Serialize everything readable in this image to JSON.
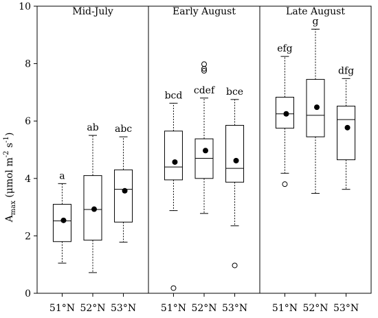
{
  "chart_data": {
    "type": "box",
    "y_axis": {
      "label_main": "A",
      "label_sub": "max",
      "label_rest": " (μmol m",
      "label_exp1": "-2",
      "label_mid": " s",
      "label_exp2": "-1",
      "label_end": ")",
      "ylim": [
        0,
        10
      ],
      "ticks": [
        0,
        2,
        4,
        6,
        8,
        10
      ],
      "tick_labels": [
        "0",
        "2",
        "4",
        "6",
        "8",
        "10"
      ]
    },
    "panels": [
      {
        "title": "Mid-July",
        "groups": [
          {
            "category": "51°N",
            "letters": "a",
            "whisker_low": 1.05,
            "q1": 1.8,
            "median": 2.52,
            "q3": 3.1,
            "whisker_high": 3.82,
            "mean": 2.54,
            "outliers": []
          },
          {
            "category": "52°N",
            "letters": "ab",
            "whisker_low": 0.72,
            "q1": 1.85,
            "median": 2.92,
            "q3": 4.1,
            "whisker_high": 5.5,
            "mean": 2.93,
            "outliers": []
          },
          {
            "category": "53°N",
            "letters": "abc",
            "whisker_low": 1.78,
            "q1": 2.48,
            "median": 3.62,
            "q3": 4.3,
            "whisker_high": 5.45,
            "mean": 3.57,
            "outliers": []
          }
        ]
      },
      {
        "title": "Early August",
        "groups": [
          {
            "category": "51°N",
            "letters": "bcd",
            "whisker_low": 2.88,
            "q1": 3.95,
            "median": 4.4,
            "q3": 5.65,
            "whisker_high": 6.62,
            "mean": 4.57,
            "outliers": [
              0.18
            ]
          },
          {
            "category": "52°N",
            "letters": "cdef",
            "whisker_low": 2.78,
            "q1": 4.0,
            "median": 4.7,
            "q3": 5.38,
            "whisker_high": 6.8,
            "mean": 4.97,
            "outliers": [
              7.75,
              7.82,
              7.98
            ]
          },
          {
            "category": "53°N",
            "letters": "bce",
            "whisker_low": 2.35,
            "q1": 3.87,
            "median": 4.35,
            "q3": 5.85,
            "whisker_high": 6.75,
            "mean": 4.62,
            "outliers": [
              0.97
            ]
          }
        ]
      },
      {
        "title": "Late August",
        "groups": [
          {
            "category": "51°N",
            "letters": "efg",
            "whisker_low": 4.18,
            "q1": 5.75,
            "median": 6.25,
            "q3": 6.83,
            "whisker_high": 8.25,
            "mean": 6.25,
            "outliers": [
              3.8
            ]
          },
          {
            "category": "52°N",
            "letters": "g",
            "whisker_low": 3.48,
            "q1": 5.45,
            "median": 6.2,
            "q3": 7.45,
            "whisker_high": 9.2,
            "mean": 6.48,
            "outliers": []
          },
          {
            "category": "53°N",
            "letters": "dfg",
            "whisker_low": 3.62,
            "q1": 4.65,
            "median": 6.05,
            "q3": 6.52,
            "whisker_high": 7.48,
            "mean": 5.77,
            "outliers": []
          }
        ]
      }
    ]
  }
}
